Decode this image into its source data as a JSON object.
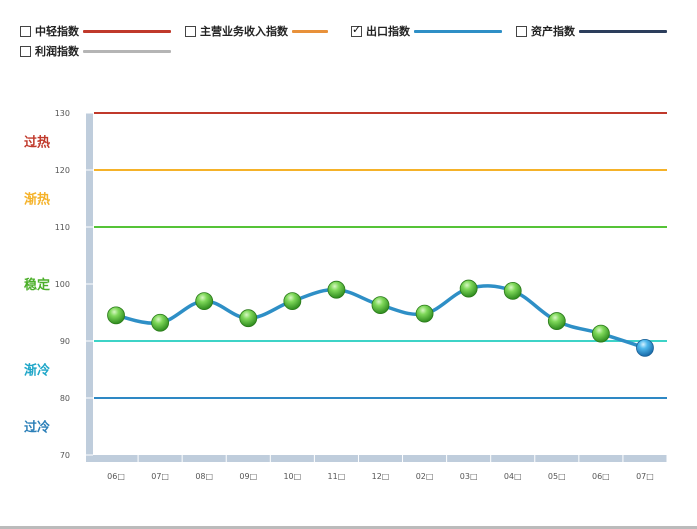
{
  "legend": [
    {
      "label": "中轻指数",
      "checked": false,
      "color": "#c0392b"
    },
    {
      "label": "主营业务收入指数",
      "checked": false,
      "color": "#e8913a"
    },
    {
      "label": "出口指数",
      "checked": true,
      "color": "#2e8fc6"
    },
    {
      "label": "资产指数",
      "checked": false,
      "color": "#2c3e5c"
    },
    {
      "label": "利润指数",
      "checked": false,
      "color": "#b5b5b5"
    }
  ],
  "bands": [
    {
      "label": "过热",
      "value": 130,
      "color": "#c0392b",
      "line_color": "#c0392b"
    },
    {
      "label": "渐热",
      "value": 120,
      "color": "#f5b229",
      "line_color": "#f5b229"
    },
    {
      "label": "稳定",
      "value": 110,
      "color": "#4caf2a",
      "line_color": "#55c337"
    },
    {
      "label": "渐冷",
      "value": 90,
      "color": "#1ea6c8",
      "line_color": "#3dd3c7"
    },
    {
      "label": "过冷",
      "value": 80,
      "color": "#2b7fb8",
      "line_color": "#2e88c4"
    }
  ],
  "chart_data": {
    "type": "line",
    "categories": [
      "06月",
      "07月",
      "08月",
      "09月",
      "10月",
      "11月",
      "12月",
      "02月",
      "03月",
      "04月",
      "05月",
      "06月",
      "07月"
    ],
    "category_labels": [
      "06□",
      "07□",
      "08□",
      "09□",
      "10□",
      "11□",
      "12□",
      "02□",
      "03□",
      "04□",
      "05□",
      "06□",
      "07□"
    ],
    "series": [
      {
        "values": [
          94.5,
          93.2,
          97.0,
          94.0,
          97.0,
          99.0,
          96.3,
          94.8,
          99.2,
          98.8,
          93.5,
          91.3,
          88.8
        ],
        "color": "#2e8fc6"
      }
    ],
    "yticks": [
      70,
      80,
      90,
      100,
      110,
      120,
      130
    ],
    "ylim": [
      70,
      130
    ],
    "title": "",
    "xlabel": "",
    "ylabel": ""
  }
}
